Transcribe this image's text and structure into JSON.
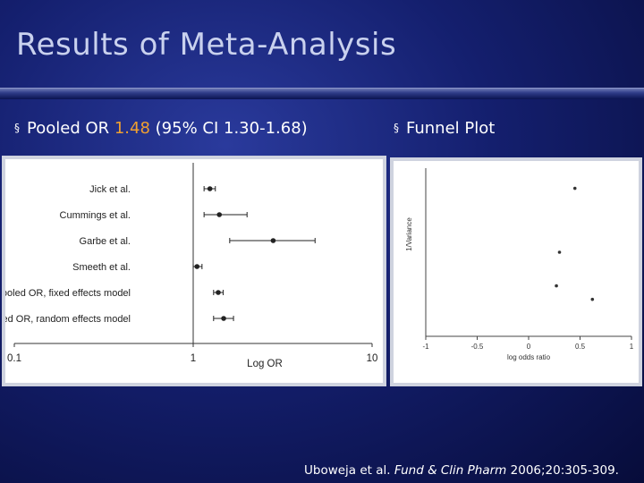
{
  "slide": {
    "title": "Results of Meta-Analysis",
    "bullet_marker": "§",
    "bullet1": {
      "prefix": "Pooled OR ",
      "highlight": "1.48",
      "suffix": " (95% CI 1.30-1.68)"
    },
    "bullet2": {
      "text": "Funnel Plot"
    },
    "citation": {
      "authors": "Uboweja et al. ",
      "journal": "Fund & Clin Pharm",
      "rest": " 2006;20:305-309."
    },
    "colors": {
      "accent": "#f0a030",
      "title": "#c9d1ee",
      "background": "#141f6e"
    }
  },
  "chart_data": [
    {
      "type": "forest",
      "xlabel": "Log OR",
      "scale": "log",
      "xlim": [
        0.1,
        10
      ],
      "xticks": [
        "0.1",
        "1",
        "10"
      ],
      "reference_line": 1,
      "rows": [
        {
          "label": "Jick et al.",
          "or": 1.24,
          "ci": [
            1.15,
            1.33
          ]
        },
        {
          "label": "Cummings et al.",
          "or": 1.4,
          "ci": [
            1.15,
            2.0
          ]
        },
        {
          "label": "Garbe et al.",
          "or": 2.8,
          "ci": [
            1.6,
            4.8
          ]
        },
        {
          "label": "Smeeth et al.",
          "or": 1.05,
          "ci": [
            1.0,
            1.12
          ]
        },
        {
          "label": "Pooled OR, fixed effects model",
          "or": 1.38,
          "ci": [
            1.3,
            1.47
          ]
        },
        {
          "label": "Pooled OR, random effects model",
          "or": 1.48,
          "ci": [
            1.3,
            1.68
          ]
        }
      ]
    },
    {
      "type": "scatter",
      "title": "",
      "xlabel": "log odds ratio",
      "ylabel": "1/Variance",
      "xlim": [
        -1,
        1
      ],
      "xticks": [
        "-1",
        "-0.5",
        "0",
        "0.5",
        "1"
      ],
      "grid": false,
      "points": [
        {
          "x": 0.45,
          "y": 0.88
        },
        {
          "x": 0.3,
          "y": 0.5
        },
        {
          "x": 0.27,
          "y": 0.3
        },
        {
          "x": 0.62,
          "y": 0.22
        }
      ]
    }
  ]
}
